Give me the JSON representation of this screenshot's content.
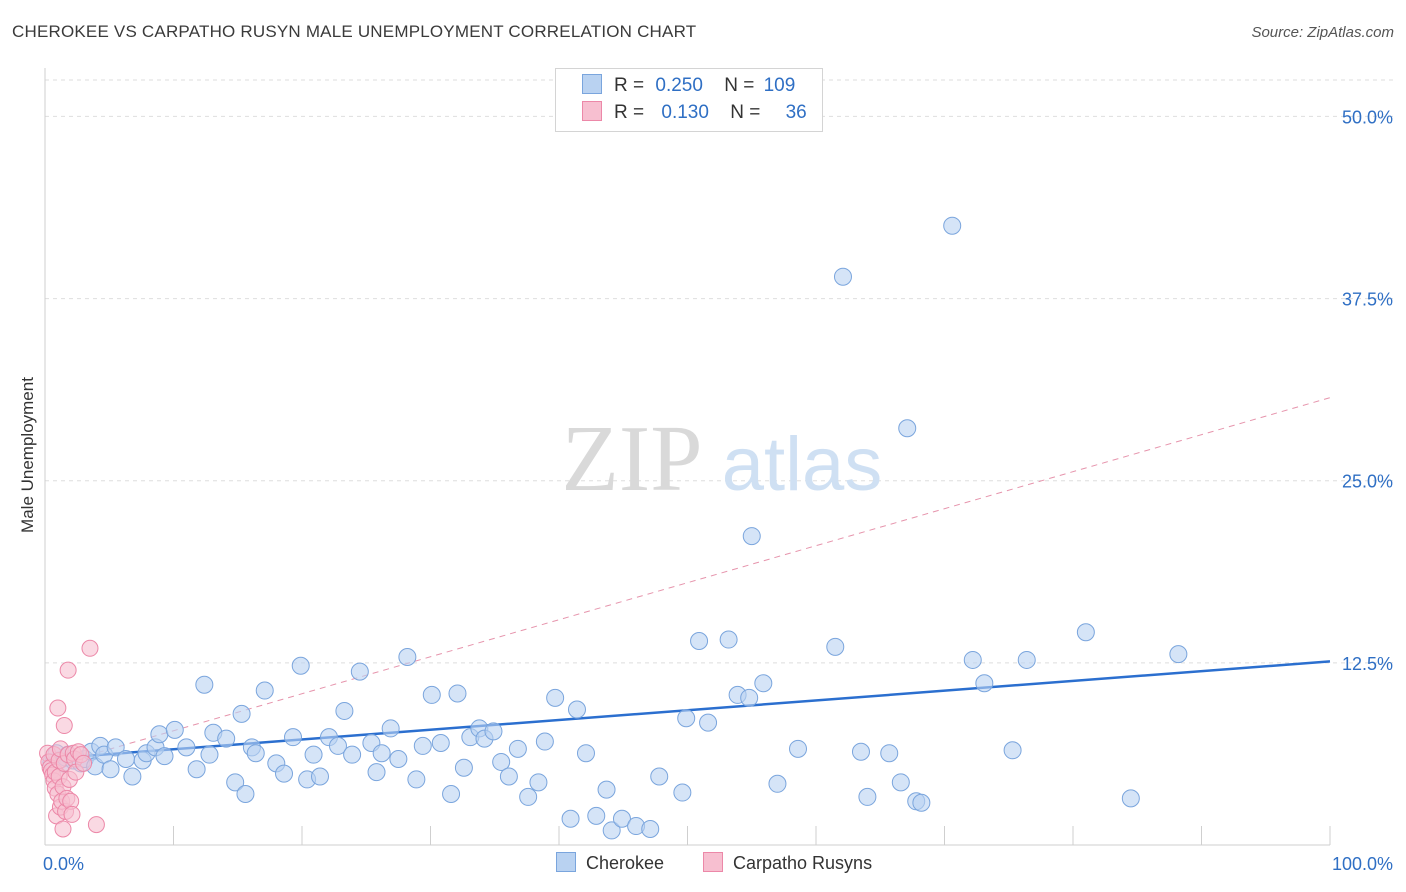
{
  "title": "CHEROKEE VS CARPATHO RUSYN MALE UNEMPLOYMENT CORRELATION CHART",
  "source": "Source: ZipAtlas.com",
  "watermark": {
    "zip": "ZIP",
    "atlas": "atlas"
  },
  "colors": {
    "blue_fill": "#b9d2f1",
    "blue_stroke": "#7aa5dd",
    "blue_line": "#2b6fcf",
    "pink_fill": "#f7bfd0",
    "pink_stroke": "#ec88a8",
    "pink_line": "#e07a98",
    "axis_text": "#2f6fc4",
    "grid": "#dedede"
  },
  "legend": {
    "r1_label": "R =",
    "r1_value": "0.250",
    "n1_label": "N =",
    "n1_value": "109",
    "r2_label": "R =",
    "r2_value": "0.130",
    "n2_label": "N =",
    "n2_value": "36"
  },
  "chart_data": {
    "type": "scatter",
    "title": "CHEROKEE VS CARPATHO RUSYN MALE UNEMPLOYMENT CORRELATION CHART",
    "xlabel": "",
    "ylabel": "Male Unemployment",
    "xlim": [
      0,
      100
    ],
    "ylim": [
      0,
      52.5
    ],
    "x_tick_labels": [
      "0.0%",
      "100.0%"
    ],
    "y_ticks": [
      12.5,
      25.0,
      37.5,
      50.0
    ],
    "y_tick_labels": [
      "12.5%",
      "25.0%",
      "37.5%",
      "50.0%"
    ],
    "grid": true,
    "legend_position": "top-center",
    "series": [
      {
        "name": "Cherokee",
        "R": 0.25,
        "N": 109,
        "trend": {
          "x": [
            0,
            100
          ],
          "y": [
            5.9,
            12.6
          ],
          "style": "solid"
        },
        "x": [
          0.5,
          0.9,
          1.1,
          1.4,
          1.6,
          1.8,
          2.2,
          2.8,
          3.1,
          3.6,
          3.9,
          4.3,
          4.6,
          5.1,
          5.5,
          6.3,
          6.8,
          7.6,
          7.9,
          8.6,
          8.9,
          9.3,
          10.1,
          11.0,
          11.8,
          12.4,
          12.8,
          13.1,
          14.1,
          14.8,
          15.3,
          15.6,
          16.1,
          16.4,
          17.1,
          18.0,
          18.6,
          19.3,
          19.9,
          20.4,
          20.9,
          21.4,
          22.1,
          22.8,
          23.3,
          23.9,
          24.5,
          25.4,
          25.8,
          26.2,
          26.9,
          27.5,
          28.2,
          28.9,
          29.4,
          30.1,
          30.8,
          31.6,
          32.1,
          32.6,
          33.1,
          33.8,
          34.2,
          34.9,
          35.5,
          36.1,
          36.8,
          37.6,
          38.4,
          38.9,
          39.7,
          40.9,
          41.4,
          42.1,
          42.9,
          43.7,
          44.1,
          44.9,
          46.0,
          47.1,
          47.8,
          49.6,
          49.9,
          50.9,
          51.6,
          53.9,
          53.2,
          54.8,
          55.0,
          55.9,
          57.0,
          58.6,
          61.5,
          62.1,
          63.5,
          64.0,
          65.7,
          66.6,
          67.1,
          67.8,
          68.2,
          70.6,
          72.2,
          73.1,
          75.3,
          76.4,
          81.0,
          84.5,
          88.2
        ],
        "y": [
          5.7,
          6.3,
          5.8,
          5.6,
          6.0,
          6.2,
          5.8,
          5.6,
          5.9,
          6.4,
          5.4,
          6.8,
          6.2,
          5.2,
          6.7,
          5.9,
          4.7,
          5.8,
          6.3,
          6.7,
          7.6,
          6.1,
          7.9,
          6.7,
          5.2,
          11.0,
          6.2,
          7.7,
          7.3,
          4.3,
          9.0,
          3.5,
          6.7,
          6.3,
          10.6,
          5.6,
          4.9,
          7.4,
          12.3,
          4.5,
          6.2,
          4.7,
          7.4,
          6.8,
          9.2,
          6.2,
          11.9,
          7.0,
          5.0,
          6.3,
          8.0,
          5.9,
          12.9,
          4.5,
          6.8,
          10.3,
          7.0,
          3.5,
          10.4,
          5.3,
          7.4,
          8.0,
          7.3,
          7.8,
          5.7,
          4.7,
          6.6,
          3.3,
          4.3,
          7.1,
          10.1,
          1.8,
          9.3,
          6.3,
          2.0,
          3.8,
          1.0,
          1.8,
          1.3,
          1.1,
          4.7,
          3.6,
          8.7,
          14.0,
          8.4,
          10.3,
          14.1,
          10.1,
          21.2,
          11.1,
          4.2,
          6.6,
          13.6,
          39.0,
          6.4,
          3.3,
          6.3,
          4.3,
          28.6,
          3.0,
          2.9,
          42.5,
          12.7,
          11.1,
          6.5,
          12.7,
          14.6,
          3.2,
          13.1
        ]
      },
      {
        "name": "Carpatho Rusyns",
        "R": 0.13,
        "N": 36,
        "trend": {
          "x": [
            0,
            100
          ],
          "y": [
            5.3,
            30.7
          ],
          "style": "dashed"
        },
        "x": [
          0.2,
          0.3,
          0.4,
          0.5,
          0.6,
          0.7,
          0.7,
          0.8,
          0.8,
          0.9,
          1.0,
          1.0,
          1.1,
          1.1,
          1.2,
          1.2,
          1.3,
          1.4,
          1.4,
          1.5,
          1.5,
          1.6,
          1.7,
          1.8,
          1.8,
          1.9,
          2.0,
          2.1,
          2.2,
          2.3,
          2.4,
          2.6,
          2.8,
          3.0,
          3.5,
          4.0
        ],
        "y": [
          6.3,
          5.7,
          5.3,
          5.1,
          4.8,
          4.4,
          6.2,
          3.9,
          5.0,
          2.0,
          3.5,
          9.4,
          4.7,
          5.8,
          2.6,
          6.6,
          3.0,
          1.1,
          4.0,
          5.6,
          8.2,
          2.3,
          3.2,
          6.2,
          12.0,
          4.5,
          3.0,
          2.1,
          6.3,
          5.9,
          5.0,
          6.4,
          6.2,
          5.6,
          13.5,
          1.4
        ]
      }
    ]
  }
}
